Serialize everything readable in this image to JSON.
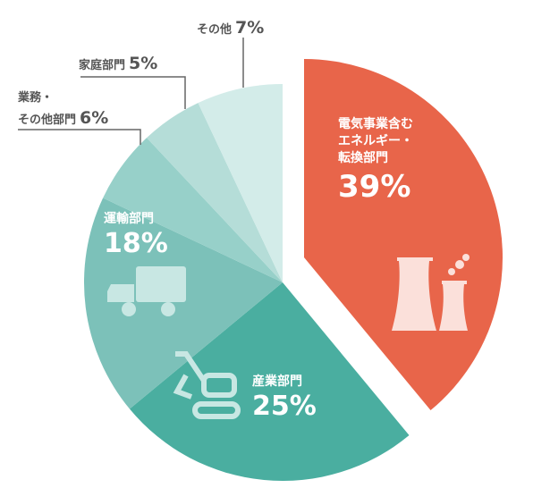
{
  "chart_data": {
    "type": "pie",
    "categories": [
      "電気事業含む\nエネルギー・\n転換部門",
      "産業部門",
      "運輸部門",
      "業務・\nその他部門",
      "家庭部門",
      "その他"
    ],
    "values": [
      39,
      25,
      18,
      6,
      5,
      7
    ],
    "value_labels": [
      "39%",
      "25%",
      "18%",
      "6%",
      "5%",
      "7%"
    ],
    "colors": [
      "#e8654a",
      "#4aaea0",
      "#7cc1b9",
      "#97d0c9",
      "#b5ddd8",
      "#d3ece9"
    ]
  }
}
